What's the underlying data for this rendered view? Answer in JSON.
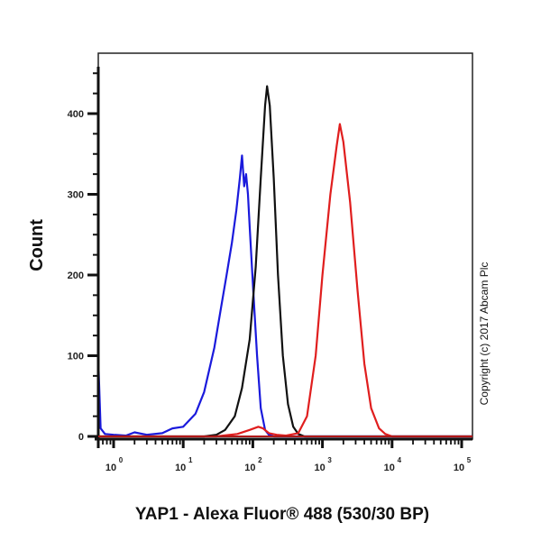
{
  "chart_data": {
    "type": "line",
    "subtype": "flow-cytometry-histogram",
    "title": "",
    "xlabel": "YAP1 - Alexa Fluor® 488 (530/30 BP)",
    "ylabel": "Count",
    "xscale": "log",
    "x_ticks": [
      "10^0",
      "10^1",
      "10^2",
      "10^3",
      "10^4",
      "10^5"
    ],
    "y_ticks": [
      0,
      100,
      200,
      300,
      400
    ],
    "xlim": [
      0.6,
      200000
    ],
    "ylim": [
      0,
      475
    ],
    "grid": false,
    "legend": null,
    "annotation": "Copyright (c) 2017 Abcam Plc",
    "series": [
      {
        "name": "blue",
        "color": "#1a1adc",
        "x": [
          0.6,
          0.65,
          0.75,
          1.0,
          1.5,
          2.0,
          3.0,
          5.0,
          7.0,
          10,
          15,
          20,
          28,
          35,
          42,
          50,
          58,
          65,
          70,
          75,
          80,
          85,
          90,
          100,
          115,
          130,
          150,
          170,
          200,
          300,
          1000,
          200000
        ],
        "values": [
          95,
          10,
          3,
          2,
          1,
          5,
          2,
          4,
          10,
          12,
          28,
          55,
          110,
          160,
          200,
          240,
          280,
          320,
          348,
          310,
          325,
          300,
          260,
          190,
          100,
          35,
          8,
          2,
          0,
          0,
          0,
          0
        ]
      },
      {
        "name": "black",
        "color": "#111111",
        "x": [
          0.6,
          20,
          30,
          40,
          55,
          70,
          90,
          110,
          130,
          150,
          160,
          175,
          200,
          230,
          270,
          320,
          380,
          450,
          550,
          200000
        ],
        "values": [
          0,
          0,
          2,
          8,
          25,
          60,
          120,
          210,
          320,
          410,
          434,
          410,
          320,
          200,
          100,
          40,
          12,
          3,
          0,
          0
        ]
      },
      {
        "name": "red",
        "color": "#e01e1e",
        "x": [
          0.6,
          30,
          60,
          90,
          120,
          140,
          170,
          220,
          300,
          450,
          600,
          800,
          1000,
          1300,
          1600,
          1780,
          2000,
          2500,
          3200,
          4000,
          5000,
          6500,
          8000,
          10000,
          200000
        ],
        "values": [
          0,
          0,
          3,
          8,
          12,
          10,
          4,
          2,
          1,
          4,
          25,
          100,
          200,
          300,
          360,
          387,
          365,
          290,
          180,
          90,
          35,
          10,
          3,
          0,
          0
        ]
      }
    ]
  },
  "labels": {
    "ylabel": "Count",
    "xlabel": "YAP1 - Alexa Fluor® 488 (530/30 BP)",
    "copyright": "Copyright (c) 2017 Abcam Plc",
    "y_tick_labels": [
      "0",
      "100",
      "200",
      "300",
      "400"
    ],
    "x_tick_base": "10",
    "x_tick_exponents": [
      "0",
      "1",
      "2",
      "3",
      "4",
      "5"
    ]
  }
}
